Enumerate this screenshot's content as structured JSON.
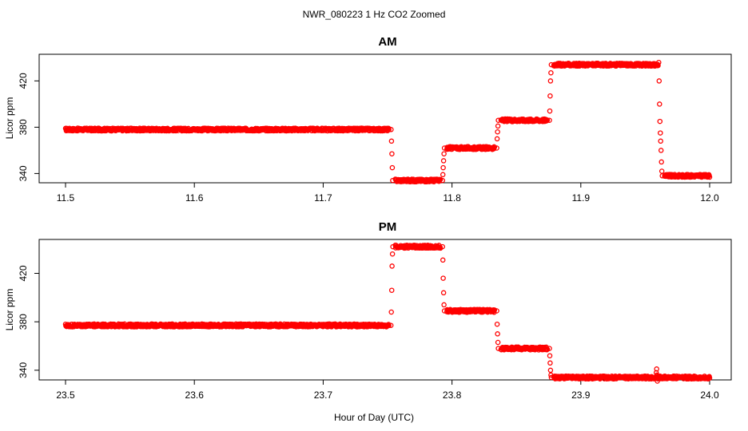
{
  "figure": {
    "title": "NWR_080223  1 Hz CO2 Zoomed",
    "xlabel": "Hour of Day (UTC)"
  },
  "chart_data": [
    {
      "type": "scatter",
      "title": "AM",
      "xlabel": "Hour of Day (UTC)",
      "ylabel": "Licor ppm",
      "xlim": [
        11.5,
        12.0
      ],
      "ylim": [
        332,
        443
      ],
      "xticks": [
        11.5,
        11.6,
        11.7,
        11.8,
        11.9,
        12.0
      ],
      "xtick_labels": [
        "11.5",
        "11.6",
        "11.7",
        "11.8",
        "11.9",
        "12.0"
      ],
      "yticks": [
        340,
        380,
        420
      ],
      "ytick_labels": [
        "340",
        "380",
        "420"
      ],
      "grid": false,
      "marker": "open-circle",
      "color": "#ff0000",
      "segments": [
        {
          "x_start": 11.5,
          "x_end": 11.751,
          "y": 378
        },
        {
          "x_start": 11.756,
          "x_end": 11.791,
          "y": 334
        },
        {
          "x_start": 11.796,
          "x_end": 11.833,
          "y": 362
        },
        {
          "x_start": 11.838,
          "x_end": 11.874,
          "y": 386
        },
        {
          "x_start": 11.879,
          "x_end": 11.96,
          "y": 434
        },
        {
          "x_start": 11.965,
          "x_end": 12.0,
          "y": 338
        }
      ],
      "transitions": [
        {
          "x": 11.7535,
          "y": [
            378,
            368,
            357,
            345,
            334
          ]
        },
        {
          "x": 11.7935,
          "y": [
            334,
            339,
            345,
            351,
            357,
            362
          ]
        },
        {
          "x": 11.8355,
          "y": [
            362,
            370,
            376,
            381,
            386
          ]
        },
        {
          "x": 11.8765,
          "y": [
            386,
            394,
            407,
            420,
            427,
            434
          ]
        },
        {
          "x": 11.962,
          "y": [
            436,
            420,
            400,
            385,
            375,
            368,
            360,
            350,
            342,
            338
          ]
        }
      ]
    },
    {
      "type": "scatter",
      "title": "PM",
      "xlabel": "Hour of Day (UTC)",
      "ylabel": "Licor ppm",
      "xlim": [
        23.5,
        24.0
      ],
      "ylim": [
        332,
        448
      ],
      "xticks": [
        23.5,
        23.6,
        23.7,
        23.8,
        23.9,
        24.0
      ],
      "xtick_labels": [
        "23.5",
        "23.6",
        "23.7",
        "23.8",
        "23.9",
        "24.0"
      ],
      "yticks": [
        340,
        380,
        420
      ],
      "ytick_labels": [
        "340",
        "380",
        "420"
      ],
      "grid": false,
      "marker": "open-circle",
      "color": "#ff0000",
      "segments": [
        {
          "x_start": 23.5,
          "x_end": 23.751,
          "y": 377
        },
        {
          "x_start": 23.756,
          "x_end": 23.791,
          "y": 442
        },
        {
          "x_start": 23.796,
          "x_end": 23.833,
          "y": 389
        },
        {
          "x_start": 23.838,
          "x_end": 23.874,
          "y": 358
        },
        {
          "x_start": 23.879,
          "x_end": 24.0,
          "y": 334
        }
      ],
      "transitions": [
        {
          "x": 23.7535,
          "y": [
            377,
            388,
            406,
            426,
            436,
            442
          ]
        },
        {
          "x": 23.7935,
          "y": [
            442,
            431,
            416,
            404,
            394,
            389
          ]
        },
        {
          "x": 23.8355,
          "y": [
            389,
            378,
            370,
            363,
            358
          ]
        },
        {
          "x": 23.8765,
          "y": [
            358,
            352,
            346,
            340,
            336,
            334
          ]
        },
        {
          "x": 23.959,
          "y": [
            334,
            338,
            341,
            336,
            331
          ]
        }
      ]
    }
  ]
}
